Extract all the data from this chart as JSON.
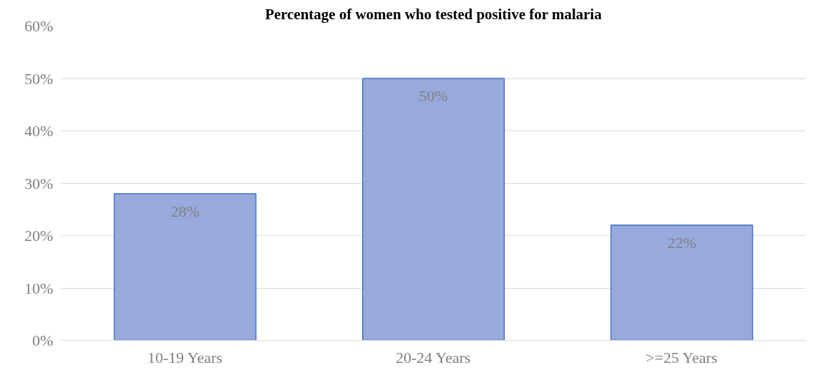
{
  "chart_data": {
    "type": "bar",
    "title": "Percentage of women who tested positive for malaria",
    "categories": [
      "10-19 Years",
      "20-24 Years",
      ">=25 Years"
    ],
    "values": [
      28,
      50,
      22
    ],
    "color": "#98aadc",
    "value_labels": [
      "28%",
      "50%",
      "22%"
    ],
    "ylim": [
      0,
      60
    ],
    "yticks": [
      {
        "value": 0,
        "label": "0%"
      },
      {
        "value": 10,
        "label": "10%"
      },
      {
        "value": 20,
        "label": "20%"
      },
      {
        "value": 30,
        "label": "30%"
      },
      {
        "value": 40,
        "label": "40%"
      },
      {
        "value": 50,
        "label": "50%"
      },
      {
        "value": 60,
        "label": "60%"
      }
    ],
    "grid": "y"
  }
}
